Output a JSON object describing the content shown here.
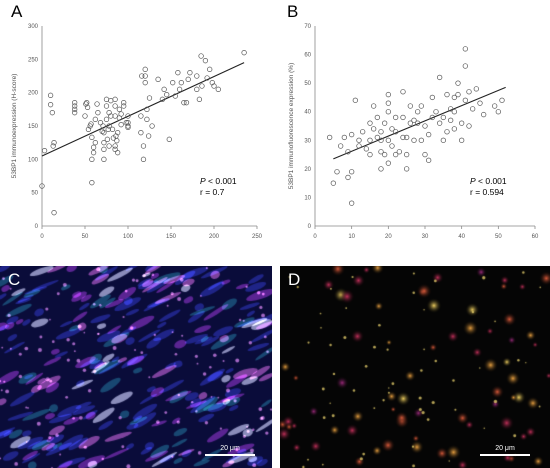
{
  "panels": {
    "a": "A",
    "b": "B",
    "c": "C",
    "d": "D"
  },
  "colors": {
    "marker": "#555555",
    "fit_line": "#222222",
    "micro_c_bg": "#0a0c3a",
    "micro_d_bg": "#050505"
  },
  "chart_data": [
    {
      "type": "scatter",
      "xlabel": "rH2AX immunoexpression (H-score)",
      "ylabel": "53BP1 immunoexpression (H-score)",
      "xlim": [
        0,
        250
      ],
      "ylim": [
        0,
        300
      ],
      "xticks": [
        0,
        50,
        100,
        150,
        200,
        250
      ],
      "yticks": [
        0,
        50,
        100,
        150,
        200,
        250,
        300
      ],
      "grid": false,
      "trendline": {
        "x": [
          0,
          235
        ],
        "y": [
          105,
          245
        ]
      },
      "annotations": {
        "p": "P < 0.001",
        "r": "r = 0.7"
      },
      "points": [
        [
          0,
          60
        ],
        [
          3,
          113
        ],
        [
          10,
          196
        ],
        [
          10,
          182
        ],
        [
          12,
          170
        ],
        [
          13,
          120
        ],
        [
          14,
          125
        ],
        [
          14,
          20
        ],
        [
          38,
          170
        ],
        [
          38,
          175
        ],
        [
          38,
          180
        ],
        [
          38,
          185
        ],
        [
          50,
          165
        ],
        [
          51,
          183
        ],
        [
          52,
          185
        ],
        [
          53,
          178
        ],
        [
          54,
          145
        ],
        [
          56,
          150
        ],
        [
          57,
          153
        ],
        [
          58,
          133
        ],
        [
          58,
          100
        ],
        [
          58,
          65
        ],
        [
          60,
          110
        ],
        [
          60,
          118
        ],
        [
          62,
          160
        ],
        [
          62,
          125
        ],
        [
          64,
          183
        ],
        [
          65,
          170
        ],
        [
          68,
          155
        ],
        [
          70,
          142
        ],
        [
          71,
          150
        ],
        [
          72,
          140
        ],
        [
          72,
          125
        ],
        [
          72,
          115
        ],
        [
          72,
          100
        ],
        [
          75,
          190
        ],
        [
          75,
          180
        ],
        [
          75,
          160
        ],
        [
          76,
          130
        ],
        [
          77,
          145
        ],
        [
          78,
          170
        ],
        [
          78,
          150
        ],
        [
          78,
          120
        ],
        [
          80,
          188
        ],
        [
          80,
          165
        ],
        [
          82,
          145
        ],
        [
          83,
          132
        ],
        [
          85,
          190
        ],
        [
          85,
          180
        ],
        [
          85,
          165
        ],
        [
          85,
          120
        ],
        [
          85,
          115
        ],
        [
          86,
          135
        ],
        [
          87,
          128
        ],
        [
          88,
          140
        ],
        [
          88,
          110
        ],
        [
          90,
          175
        ],
        [
          90,
          162
        ],
        [
          92,
          168
        ],
        [
          92,
          152
        ],
        [
          95,
          185
        ],
        [
          95,
          180
        ],
        [
          98,
          155
        ],
        [
          100,
          165
        ],
        [
          100,
          155
        ],
        [
          100,
          150
        ],
        [
          100,
          148
        ],
        [
          115,
          165
        ],
        [
          115,
          140
        ],
        [
          116,
          225
        ],
        [
          118,
          120
        ],
        [
          118,
          100
        ],
        [
          120,
          235
        ],
        [
          120,
          225
        ],
        [
          120,
          215
        ],
        [
          122,
          175
        ],
        [
          122,
          160
        ],
        [
          124,
          135
        ],
        [
          125,
          192
        ],
        [
          128,
          150
        ],
        [
          135,
          220
        ],
        [
          140,
          190
        ],
        [
          142,
          205
        ],
        [
          145,
          197
        ],
        [
          148,
          130
        ],
        [
          152,
          215
        ],
        [
          155,
          195
        ],
        [
          158,
          230
        ],
        [
          160,
          205
        ],
        [
          162,
          215
        ],
        [
          165,
          185
        ],
        [
          168,
          185
        ],
        [
          170,
          220
        ],
        [
          172,
          230
        ],
        [
          180,
          205
        ],
        [
          180,
          225
        ],
        [
          183,
          190
        ],
        [
          185,
          255
        ],
        [
          186,
          210
        ],
        [
          190,
          248
        ],
        [
          192,
          222
        ],
        [
          195,
          235
        ],
        [
          198,
          215
        ],
        [
          200,
          210
        ],
        [
          205,
          205
        ],
        [
          235,
          260
        ]
      ]
    },
    {
      "type": "scatter",
      "xlabel": "rH2AX immunofluorescence expression (%)",
      "ylabel": "53BP1 immunofluorescence expression (%)",
      "xlim": [
        0,
        60
      ],
      "ylim": [
        0,
        70
      ],
      "xticks": [
        0,
        10,
        20,
        30,
        40,
        50,
        60
      ],
      "yticks": [
        0,
        10,
        20,
        30,
        40,
        50,
        60,
        70
      ],
      "grid": false,
      "trendline": {
        "x": [
          5,
          52
        ],
        "y": [
          23.5,
          48.5
        ]
      },
      "annotations": {
        "p": "P < 0.001",
        "r": "r = 0.594"
      },
      "points": [
        [
          4,
          31
        ],
        [
          5,
          15
        ],
        [
          6,
          19
        ],
        [
          7,
          28
        ],
        [
          8,
          31
        ],
        [
          9,
          26
        ],
        [
          9,
          17
        ],
        [
          10,
          32
        ],
        [
          10,
          8
        ],
        [
          10,
          19
        ],
        [
          11,
          44
        ],
        [
          12,
          30
        ],
        [
          12,
          28
        ],
        [
          13,
          33
        ],
        [
          14,
          27
        ],
        [
          15,
          36
        ],
        [
          15,
          30
        ],
        [
          15,
          25
        ],
        [
          16,
          34
        ],
        [
          16,
          42
        ],
        [
          17,
          31
        ],
        [
          17,
          38
        ],
        [
          18,
          20
        ],
        [
          18,
          26
        ],
        [
          18,
          30
        ],
        [
          18,
          33
        ],
        [
          19,
          36
        ],
        [
          19,
          25
        ],
        [
          20,
          43
        ],
        [
          20,
          46
        ],
        [
          20,
          40
        ],
        [
          20,
          30
        ],
        [
          20,
          22
        ],
        [
          21,
          28
        ],
        [
          21,
          34
        ],
        [
          22,
          38
        ],
        [
          22,
          33
        ],
        [
          22,
          25
        ],
        [
          23,
          26
        ],
        [
          24,
          47
        ],
        [
          24,
          31
        ],
        [
          24,
          38
        ],
        [
          25,
          20
        ],
        [
          25,
          25
        ],
        [
          25,
          31
        ],
        [
          26,
          36
        ],
        [
          26,
          42
        ],
        [
          27,
          30
        ],
        [
          27,
          37
        ],
        [
          28,
          36
        ],
        [
          28,
          40
        ],
        [
          29,
          30
        ],
        [
          29,
          42
        ],
        [
          30,
          25
        ],
        [
          30,
          35
        ],
        [
          31,
          23
        ],
        [
          31,
          32
        ],
        [
          32,
          38
        ],
        [
          32,
          45
        ],
        [
          33,
          40
        ],
        [
          34,
          36
        ],
        [
          34,
          52
        ],
        [
          35,
          38
        ],
        [
          35,
          30
        ],
        [
          36,
          46
        ],
        [
          36,
          33
        ],
        [
          37,
          41
        ],
        [
          37,
          37
        ],
        [
          38,
          34
        ],
        [
          38,
          40
        ],
        [
          38,
          45
        ],
        [
          39,
          46
        ],
        [
          39,
          50
        ],
        [
          40,
          30
        ],
        [
          40,
          36
        ],
        [
          41,
          56
        ],
        [
          41,
          44
        ],
        [
          41,
          62
        ],
        [
          42,
          47
        ],
        [
          42,
          35
        ],
        [
          43,
          41
        ],
        [
          44,
          48
        ],
        [
          45,
          43
        ],
        [
          46,
          39
        ],
        [
          49,
          42
        ],
        [
          50,
          40
        ],
        [
          51,
          44
        ]
      ]
    }
  ],
  "micrographs": [
    {
      "panel": "C",
      "scale_label": "20 μm"
    },
    {
      "panel": "D",
      "scale_label": "20 μm"
    }
  ]
}
